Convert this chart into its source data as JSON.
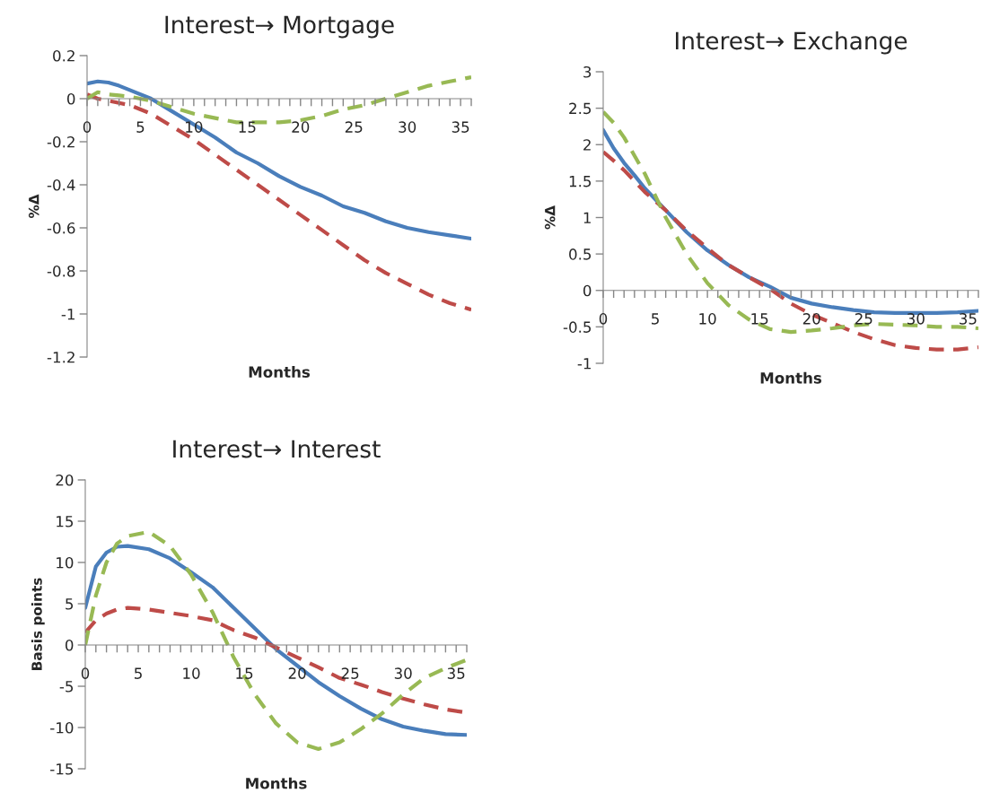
{
  "chart_data": [
    {
      "type": "line",
      "title": "Interest→ Mortgage",
      "xlabel": "Months",
      "ylabel": "%Δ",
      "x": [
        0,
        1,
        2,
        3,
        4,
        6,
        8,
        10,
        12,
        14,
        16,
        18,
        20,
        22,
        24,
        26,
        28,
        30,
        32,
        34,
        36
      ],
      "xlim": [
        0,
        36
      ],
      "xticks": [
        0,
        {
          "value": 1,
          "label": null
        },
        {
          "value": 2,
          "label": null
        },
        {
          "value": 3,
          "label": null
        },
        {
          "value": 4,
          "label": null
        },
        5,
        {
          "value": 6,
          "label": null
        },
        {
          "value": 7,
          "label": null
        },
        {
          "value": 8,
          "label": null
        },
        {
          "value": 9,
          "label": null
        },
        10,
        {
          "value": 11,
          "label": null
        },
        {
          "value": 12,
          "label": null
        },
        {
          "value": 13,
          "label": null
        },
        {
          "value": 14,
          "label": null
        },
        15,
        {
          "value": 16,
          "label": null
        },
        {
          "value": 17,
          "label": null
        },
        {
          "value": 18,
          "label": null
        },
        {
          "value": 19,
          "label": null
        },
        20,
        {
          "value": 21,
          "label": null
        },
        {
          "value": 22,
          "label": null
        },
        {
          "value": 23,
          "label": null
        },
        {
          "value": 24,
          "label": null
        },
        25,
        {
          "value": 26,
          "label": null
        },
        {
          "value": 27,
          "label": null
        },
        {
          "value": 28,
          "label": null
        },
        {
          "value": 29,
          "label": null
        },
        30,
        {
          "value": 31,
          "label": null
        },
        {
          "value": 32,
          "label": null
        },
        {
          "value": 33,
          "label": null
        },
        {
          "value": 34,
          "label": null
        },
        35,
        {
          "value": 36,
          "label": null
        }
      ],
      "ylim": [
        -1.2,
        0.2
      ],
      "yticks": [
        -1.2,
        -1,
        -0.8,
        -0.6,
        -0.4,
        -0.2,
        0,
        0.2
      ],
      "grid": false,
      "legend": false,
      "series": [
        {
          "color": "#4a7ebb",
          "line_style": "solid",
          "values": [
            0.07,
            0.08,
            0.075,
            0.06,
            0.04,
            0.0,
            -0.06,
            -0.12,
            -0.18,
            -0.25,
            -0.3,
            -0.36,
            -0.41,
            -0.45,
            -0.5,
            -0.53,
            -0.57,
            -0.6,
            -0.62,
            -0.635,
            -0.65
          ]
        },
        {
          "color": "#be4b48",
          "line_style": "dashed",
          "values": [
            0.02,
            0.0,
            -0.01,
            -0.02,
            -0.03,
            -0.07,
            -0.13,
            -0.19,
            -0.26,
            -0.33,
            -0.4,
            -0.47,
            -0.54,
            -0.61,
            -0.68,
            -0.75,
            -0.81,
            -0.86,
            -0.91,
            -0.95,
            -0.98
          ]
        },
        {
          "color": "#98b954",
          "line_style": "dashed",
          "values": [
            0.0,
            0.03,
            0.02,
            0.015,
            0.01,
            -0.01,
            -0.04,
            -0.07,
            -0.09,
            -0.11,
            -0.11,
            -0.11,
            -0.1,
            -0.08,
            -0.05,
            -0.03,
            0.0,
            0.03,
            0.06,
            0.08,
            0.1
          ]
        }
      ]
    },
    {
      "type": "line",
      "title": "Interest→ Exchange",
      "xlabel": "Months",
      "ylabel": "%Δ",
      "x": [
        0,
        1,
        2,
        3,
        4,
        6,
        8,
        10,
        12,
        14,
        16,
        18,
        20,
        22,
        24,
        26,
        28,
        30,
        32,
        34,
        36
      ],
      "xlim": [
        0,
        36
      ],
      "xticks": [
        0,
        {
          "value": 1,
          "label": null
        },
        {
          "value": 2,
          "label": null
        },
        {
          "value": 3,
          "label": null
        },
        {
          "value": 4,
          "label": null
        },
        5,
        {
          "value": 6,
          "label": null
        },
        {
          "value": 7,
          "label": null
        },
        {
          "value": 8,
          "label": null
        },
        {
          "value": 9,
          "label": null
        },
        10,
        {
          "value": 11,
          "label": null
        },
        {
          "value": 12,
          "label": null
        },
        {
          "value": 13,
          "label": null
        },
        {
          "value": 14,
          "label": null
        },
        15,
        {
          "value": 16,
          "label": null
        },
        {
          "value": 17,
          "label": null
        },
        {
          "value": 18,
          "label": null
        },
        {
          "value": 19,
          "label": null
        },
        20,
        {
          "value": 21,
          "label": null
        },
        {
          "value": 22,
          "label": null
        },
        {
          "value": 23,
          "label": null
        },
        {
          "value": 24,
          "label": null
        },
        25,
        {
          "value": 26,
          "label": null
        },
        {
          "value": 27,
          "label": null
        },
        {
          "value": 28,
          "label": null
        },
        {
          "value": 29,
          "label": null
        },
        30,
        {
          "value": 31,
          "label": null
        },
        {
          "value": 32,
          "label": null
        },
        {
          "value": 33,
          "label": null
        },
        {
          "value": 34,
          "label": null
        },
        35,
        {
          "value": 36,
          "label": null
        }
      ],
      "ylim": [
        -1,
        3
      ],
      "yticks": [
        -1,
        -0.5,
        0,
        0.5,
        1,
        1.5,
        2,
        2.5,
        3
      ],
      "grid": false,
      "legend": false,
      "series": [
        {
          "color": "#4a7ebb",
          "line_style": "solid",
          "values": [
            2.2,
            1.95,
            1.75,
            1.58,
            1.4,
            1.1,
            0.8,
            0.55,
            0.35,
            0.18,
            0.05,
            -0.1,
            -0.18,
            -0.23,
            -0.27,
            -0.3,
            -0.31,
            -0.31,
            -0.31,
            -0.3,
            -0.28
          ]
        },
        {
          "color": "#be4b48",
          "line_style": "dashed",
          "values": [
            1.9,
            1.78,
            1.65,
            1.5,
            1.35,
            1.1,
            0.82,
            0.58,
            0.35,
            0.18,
            0.02,
            -0.18,
            -0.33,
            -0.45,
            -0.57,
            -0.67,
            -0.75,
            -0.79,
            -0.81,
            -0.81,
            -0.78
          ]
        },
        {
          "color": "#98b954",
          "line_style": "dashed",
          "values": [
            2.45,
            2.3,
            2.1,
            1.85,
            1.6,
            1.0,
            0.5,
            0.1,
            -0.2,
            -0.4,
            -0.53,
            -0.57,
            -0.55,
            -0.52,
            -0.48,
            -0.46,
            -0.47,
            -0.48,
            -0.5,
            -0.5,
            -0.52
          ]
        }
      ]
    },
    {
      "type": "line",
      "title": "Interest→ Interest",
      "xlabel": "Months",
      "ylabel": "Basis points",
      "x": [
        0,
        1,
        2,
        3,
        4,
        6,
        8,
        10,
        12,
        14,
        16,
        18,
        20,
        22,
        24,
        26,
        28,
        30,
        32,
        34,
        36
      ],
      "xlim": [
        0,
        36
      ],
      "xticks": [
        0,
        {
          "value": 1,
          "label": null
        },
        {
          "value": 2,
          "label": null
        },
        {
          "value": 3,
          "label": null
        },
        {
          "value": 4,
          "label": null
        },
        5,
        {
          "value": 6,
          "label": null
        },
        {
          "value": 7,
          "label": null
        },
        {
          "value": 8,
          "label": null
        },
        {
          "value": 9,
          "label": null
        },
        10,
        {
          "value": 11,
          "label": null
        },
        {
          "value": 12,
          "label": null
        },
        {
          "value": 13,
          "label": null
        },
        {
          "value": 14,
          "label": null
        },
        15,
        {
          "value": 16,
          "label": null
        },
        {
          "value": 17,
          "label": null
        },
        {
          "value": 18,
          "label": null
        },
        {
          "value": 19,
          "label": null
        },
        20,
        {
          "value": 21,
          "label": null
        },
        {
          "value": 22,
          "label": null
        },
        {
          "value": 23,
          "label": null
        },
        {
          "value": 24,
          "label": null
        },
        25,
        {
          "value": 26,
          "label": null
        },
        {
          "value": 27,
          "label": null
        },
        {
          "value": 28,
          "label": null
        },
        {
          "value": 29,
          "label": null
        },
        30,
        {
          "value": 31,
          "label": null
        },
        {
          "value": 32,
          "label": null
        },
        {
          "value": 33,
          "label": null
        },
        {
          "value": 34,
          "label": null
        },
        35,
        {
          "value": 36,
          "label": null
        }
      ],
      "ylim": [
        -15,
        20
      ],
      "yticks": [
        -15,
        -10,
        -5,
        0,
        5,
        10,
        15,
        20
      ],
      "grid": false,
      "legend": false,
      "series": [
        {
          "color": "#4a7ebb",
          "line_style": "solid",
          "values": [
            4.5,
            9.5,
            11.2,
            11.9,
            12.0,
            11.6,
            10.5,
            8.8,
            7.0,
            4.5,
            2.0,
            -0.5,
            -2.5,
            -4.5,
            -6.2,
            -7.7,
            -9.0,
            -9.9,
            -10.4,
            -10.8,
            -10.9
          ]
        },
        {
          "color": "#be4b48",
          "line_style": "dashed",
          "values": [
            1.5,
            3.0,
            3.8,
            4.3,
            4.5,
            4.3,
            3.9,
            3.5,
            3.0,
            1.8,
            0.9,
            -0.3,
            -1.5,
            -2.7,
            -4.0,
            -4.8,
            -5.7,
            -6.5,
            -7.2,
            -7.8,
            -8.2
          ]
        },
        {
          "color": "#98b954",
          "line_style": "dashed",
          "values": [
            0,
            6,
            10,
            12.3,
            13.2,
            13.7,
            12.0,
            8.5,
            4.0,
            -1.5,
            -6,
            -9.5,
            -11.8,
            -12.6,
            -11.8,
            -10.2,
            -8.3,
            -6.0,
            -4.0,
            -2.8,
            -1.8
          ]
        }
      ]
    }
  ]
}
